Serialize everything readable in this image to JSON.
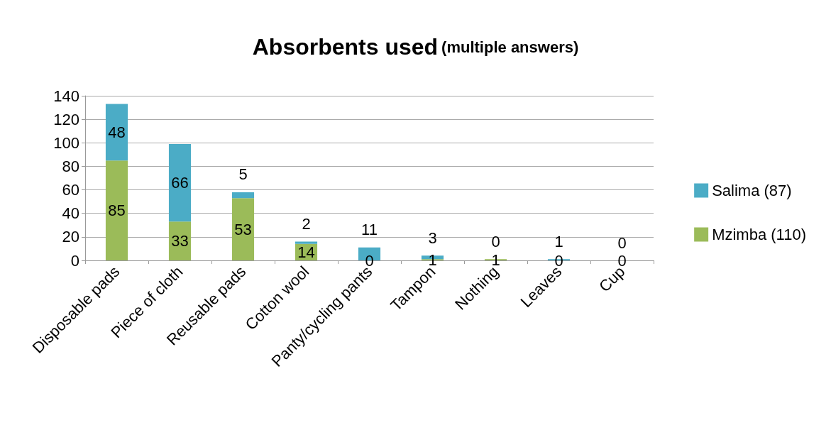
{
  "chart_data": {
    "type": "bar",
    "title": "Absorbents used",
    "subtitle": "(multiple answers)",
    "categories": [
      "Disposable pads",
      "Piece of cloth",
      "Reusable pads",
      "Cotton wool",
      "Panty/cycling pants",
      "Tampon",
      "Nothing",
      "Leaves",
      "Cup"
    ],
    "series": [
      {
        "name": "Mzimba (110)",
        "color": "#9bbb59",
        "values": [
          85,
          33,
          53,
          14,
          0,
          1,
          1,
          0,
          0
        ]
      },
      {
        "name": "Salima (87)",
        "color": "#4bacc6",
        "values": [
          48,
          66,
          5,
          2,
          11,
          3,
          0,
          1,
          0
        ]
      }
    ],
    "stacked": true,
    "ylim": [
      0,
      140
    ],
    "yticks": [
      0,
      20,
      40,
      60,
      80,
      100,
      120,
      140
    ],
    "grid": "y",
    "legend": "right",
    "data_labels": true
  }
}
